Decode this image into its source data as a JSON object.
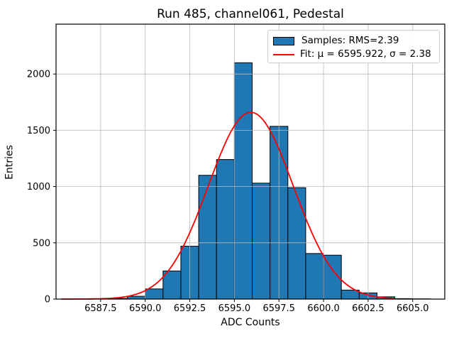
{
  "title": "Run 485, channel061, Pedestal",
  "chart_data": {
    "type": "bar",
    "subtype": "histogram-with-gaussian-fit",
    "title": "Run 485, channel061, Pedestal",
    "xlabel": "ADC Counts",
    "ylabel": "Entries",
    "xlim": [
      6585.0,
      6606.8
    ],
    "ylim": [
      0,
      2443
    ],
    "grid": true,
    "grid_color": "#b8b8b8",
    "background_color": "#ffffff",
    "xtick_values": [
      6587.5,
      6590.0,
      6592.5,
      6595.0,
      6597.5,
      6600.0,
      6602.5,
      6605.0
    ],
    "xtick_labels": [
      "6587.5",
      "6590.0",
      "6592.5",
      "6595.0",
      "6597.5",
      "6600.0",
      "6602.5",
      "6605.0"
    ],
    "ytick_values": [
      0,
      500,
      1000,
      1500,
      2000
    ],
    "ytick_labels": [
      "0",
      "500",
      "1000",
      "1500",
      "2000"
    ],
    "histogram": {
      "legend_label": "Samples: RMS=2.39",
      "rms": 2.39,
      "color": "#1f77b4",
      "edge_color": "#000000",
      "bin_width": 1,
      "bin_left_edges": [
        6586,
        6587,
        6588,
        6589,
        6590,
        6591,
        6592,
        6593,
        6594,
        6595,
        6596,
        6597,
        6598,
        6599,
        6600,
        6601,
        6602,
        6603,
        6604,
        6605
      ],
      "counts": [
        2,
        3,
        6,
        25,
        90,
        250,
        470,
        1100,
        1240,
        2100,
        1030,
        1535,
        990,
        405,
        390,
        80,
        55,
        20,
        4,
        2
      ]
    },
    "fit": {
      "legend_label": "Fit: μ = 6595.922, σ = 2.38",
      "mu": 6595.922,
      "sigma": 2.38,
      "amplitude": 1660,
      "x_range": [
        6585.3,
        6604.0
      ],
      "color": "#ff0000"
    },
    "legend_position": "upper right"
  }
}
